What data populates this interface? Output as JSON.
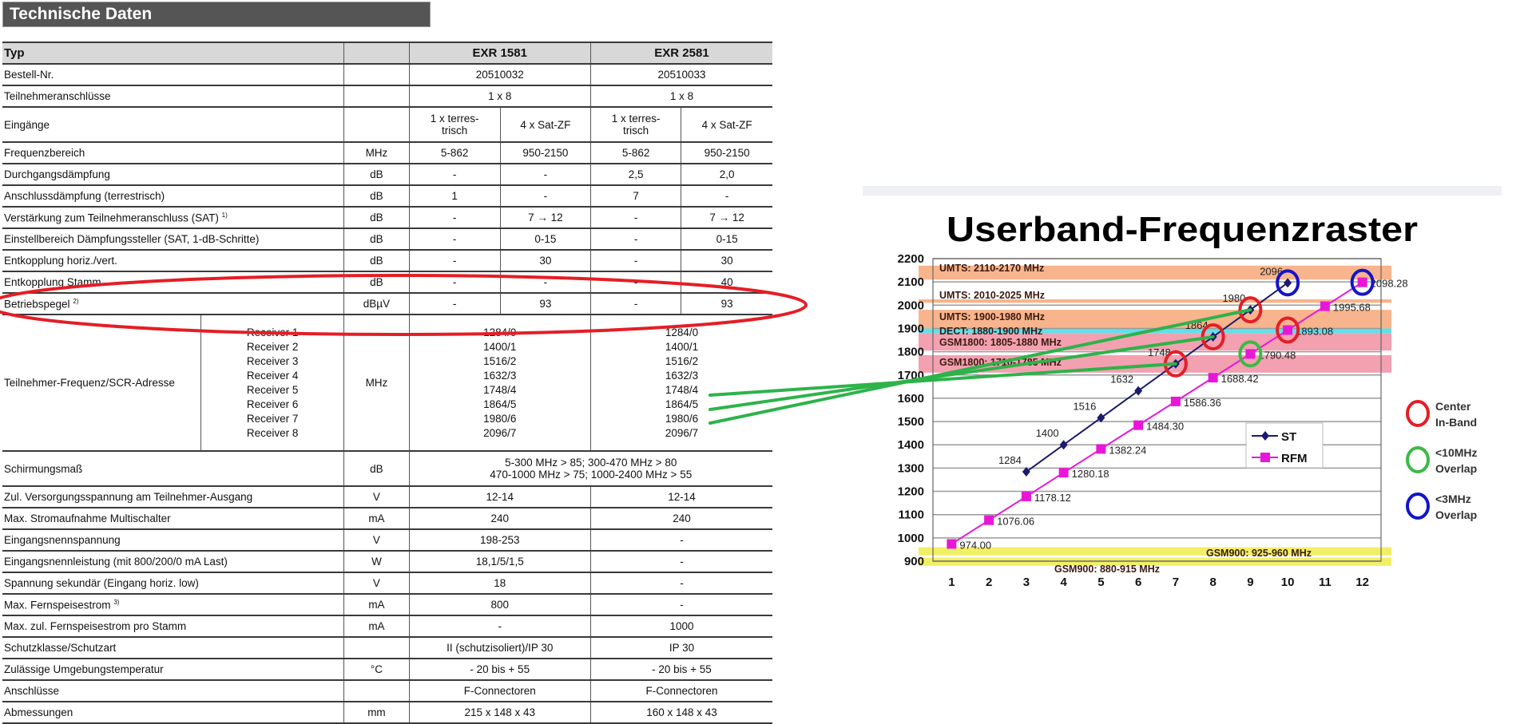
{
  "section_title": "Technische Daten",
  "table": {
    "header": {
      "label": "Typ",
      "unit": "",
      "products": [
        "EXR 1581",
        "EXR 2581"
      ]
    },
    "rows": [
      {
        "label": "Bestell-Nr.",
        "unit": "",
        "layout": "pair",
        "values": [
          "20510032",
          "20510033"
        ]
      },
      {
        "label": "Teilnehmeranschlüsse",
        "unit": "",
        "layout": "pair",
        "values": [
          "1 x 8",
          "1 x 8"
        ]
      },
      {
        "label": "Eingänge",
        "unit": "",
        "layout": "quad",
        "tall": true,
        "values": [
          "1 x terres-\ntrisch",
          "4 x Sat-ZF",
          "1 x terres-\ntrisch",
          "4 x Sat-ZF"
        ]
      },
      {
        "label": "Frequenzbereich",
        "unit": "MHz",
        "layout": "quad",
        "values": [
          "5-862",
          "950-2150",
          "5-862",
          "950-2150"
        ]
      },
      {
        "label": "Durchgangsdämpfung",
        "unit": "dB",
        "layout": "quad",
        "values": [
          "-",
          "-",
          "2,5",
          "2,0"
        ]
      },
      {
        "label": "Anschlussdämpfung (terrestrisch)",
        "unit": "dB",
        "layout": "quad",
        "values": [
          "1",
          "-",
          "7",
          "-"
        ]
      },
      {
        "label": "Verstärkung zum Teilnehmeranschluss (SAT)",
        "sup": "1)",
        "unit": "dB",
        "layout": "quad",
        "values": [
          "-",
          "7 → 12",
          "-",
          "7 → 12"
        ]
      },
      {
        "label": "Einstellbereich Dämpfungssteller (SAT, 1-dB-Schritte)",
        "unit": "dB",
        "layout": "quad",
        "values": [
          "-",
          "0-15",
          "-",
          "0-15"
        ]
      },
      {
        "label": "Entkopplung horiz./vert.",
        "unit": "dB",
        "layout": "quad",
        "values": [
          "-",
          "30",
          "-",
          "30"
        ]
      },
      {
        "label": "Entkopplung Stamm",
        "unit": "dB",
        "layout": "quad",
        "values": [
          "-",
          "-",
          "-",
          "40"
        ]
      },
      {
        "label": "Betriebspegel",
        "sup": "2)",
        "unit": "dBµV",
        "layout": "quad",
        "values": [
          "-",
          "93",
          "-",
          "93"
        ]
      },
      {
        "label": "Teilnehmer-Frequenz/SCR-Adresse",
        "unit": "MHz",
        "layout": "receivers",
        "receivers": [
          "Receiver 1",
          "Receiver 2",
          "Receiver 3",
          "Receiver 4",
          "Receiver 5",
          "Receiver 6",
          "Receiver 7",
          "Receiver 8"
        ],
        "values": [
          [
            "1284/0",
            "1400/1",
            "1516/2",
            "1632/3",
            "1748/4",
            "1864/5",
            "1980/6",
            "2096/7"
          ],
          [
            "1284/0",
            "1400/1",
            "1516/2",
            "1632/3",
            "1748/4",
            "1864/5",
            "1980/6",
            "2096/7"
          ]
        ]
      },
      {
        "label": "Schirmungsmaß",
        "unit": "dB",
        "layout": "merged",
        "tall": true,
        "values": [
          "5-300 MHz > 85; 300-470 MHz > 80\n470-1000 MHz > 75; 1000-2400 MHz > 55"
        ]
      },
      {
        "label": "Zul. Versorgungsspannung am Teilnehmer-Ausgang",
        "unit": "V",
        "layout": "pair",
        "values": [
          "12-14",
          "12-14"
        ]
      },
      {
        "label": "Max. Stromaufnahme Multischalter",
        "unit": "mA",
        "layout": "pair",
        "values": [
          "240",
          "240"
        ]
      },
      {
        "label": "Eingangsnennspannung",
        "unit": "V",
        "layout": "pair",
        "values": [
          "198-253",
          "-"
        ]
      },
      {
        "label": "Eingangsnennleistung (mit 800/200/0 mA Last)",
        "unit": "W",
        "layout": "pair",
        "values": [
          "18,1/5/1,5",
          "-"
        ]
      },
      {
        "label": "Spannung sekundär (Eingang horiz. low)",
        "unit": "V",
        "layout": "pair",
        "values": [
          "18",
          "-"
        ]
      },
      {
        "label": "Max. Fernspeisestrom",
        "sup": "3)",
        "unit": "mA",
        "layout": "pair",
        "values": [
          "800",
          "-"
        ]
      },
      {
        "label": "Max. zul. Fernspeisestrom pro Stamm",
        "unit": "mA",
        "layout": "pair",
        "values": [
          "-",
          "1000"
        ]
      },
      {
        "label": "Schutzklasse/Schutzart",
        "unit": "",
        "layout": "pair",
        "values": [
          "II (schutzisoliert)/IP 30",
          "IP 30"
        ]
      },
      {
        "label": "Zulässige Umgebungstemperatur",
        "unit": "°C",
        "layout": "pair",
        "values": [
          "- 20 bis + 55",
          "- 20 bis + 55"
        ]
      },
      {
        "label": "Anschlüsse",
        "unit": "",
        "layout": "pair",
        "values": [
          "F-Connectoren",
          "F-Connectoren"
        ]
      },
      {
        "label": "Abmessungen",
        "unit": "mm",
        "layout": "pair",
        "values": [
          "215 x 148 x 43",
          "160 x 148 x 43"
        ]
      }
    ]
  },
  "annotations": {
    "highlight_color": "#e41e26",
    "connector_color": "#2db34a"
  },
  "chart_data": {
    "type": "line",
    "title": "Userband-Frequenzraster",
    "x": [
      1,
      2,
      3,
      4,
      5,
      6,
      7,
      8,
      9,
      10,
      11,
      12
    ],
    "xlim": [
      0.5,
      12.5
    ],
    "ylim": [
      900,
      2200
    ],
    "yticks": [
      900,
      1000,
      1100,
      1200,
      1300,
      1400,
      1500,
      1600,
      1700,
      1800,
      1900,
      2000,
      2100,
      2200
    ],
    "grid": true,
    "series": [
      {
        "name": "ST",
        "color": "#1a1a6e",
        "marker": "diamond",
        "x": [
          3,
          4,
          5,
          6,
          7,
          8,
          9,
          10
        ],
        "values": [
          1284,
          1400,
          1516,
          1632,
          1748,
          1864,
          1980,
          2096
        ],
        "labels": [
          "1284",
          "1400",
          "1516",
          "1632",
          "1748",
          "1864",
          "1980",
          "2096"
        ]
      },
      {
        "name": "RFM",
        "color": "#e817d8",
        "marker": "square",
        "x": [
          1,
          2,
          3,
          4,
          5,
          6,
          7,
          8,
          9,
          10,
          11,
          12
        ],
        "values": [
          974.0,
          1076.06,
          1178.12,
          1280.18,
          1382.24,
          1484.3,
          1586.36,
          1688.42,
          1790.48,
          1893.08,
          1995.68,
          2098.28
        ],
        "labels": [
          "974.00",
          "1076.06",
          "1178.12",
          "1280.18",
          "1382.24",
          "1484.30",
          "1586.36",
          "1688.42",
          "1790.48",
          "1893.08",
          "1995.68",
          "2098.28"
        ]
      }
    ],
    "bands": [
      {
        "label": "UMTS: 2110-2170 MHz",
        "from": 2110,
        "to": 2170,
        "color": "#f8b48c"
      },
      {
        "label": "UMTS: 2010-2025 MHz",
        "from": 2010,
        "to": 2025,
        "color": "#f8b48c"
      },
      {
        "label": "UMTS: 1900-1980 MHz",
        "from": 1900,
        "to": 1980,
        "color": "#f8b48c"
      },
      {
        "label": "DECT: 1880-1900 MHz",
        "from": 1880,
        "to": 1900,
        "color": "#5fe0ea"
      },
      {
        "label": "GSM1800: 1805-1880 MHz",
        "from": 1805,
        "to": 1880,
        "color": "#f3a0b0"
      },
      {
        "label": "GSM1800: 1710-1785 MHz",
        "from": 1710,
        "to": 1785,
        "color": "#f3a0b0"
      },
      {
        "label": "GSM900: 925-960 MHz",
        "from": 925,
        "to": 960,
        "color": "#f1ef66"
      },
      {
        "label": "GSM900: 880-915 MHz",
        "from": 880,
        "to": 915,
        "color": "#f1ef66"
      }
    ],
    "legend": {
      "position": "center-right",
      "entries": [
        "ST",
        "RFM"
      ]
    },
    "marker_legend": [
      {
        "label": "Center\nIn-Band",
        "color": "#e41e26"
      },
      {
        "label": "<10MHz\nOverlap",
        "color": "#3cb944"
      },
      {
        "label": "<3MHz\nOverlap",
        "color": "#1414c8"
      }
    ],
    "circled_points": [
      {
        "series": "ST",
        "x": 7,
        "kind": "Center In-Band"
      },
      {
        "series": "ST",
        "x": 8,
        "kind": "Center In-Band"
      },
      {
        "series": "ST",
        "x": 9,
        "kind": "Center In-Band"
      },
      {
        "series": "RFM",
        "x": 10,
        "kind": "Center In-Band"
      },
      {
        "series": "RFM",
        "x": 9,
        "kind": "<10MHz Overlap"
      },
      {
        "series": "ST",
        "x": 10,
        "kind": "<3MHz Overlap"
      },
      {
        "series": "RFM",
        "x": 12,
        "kind": "<3MHz Overlap"
      }
    ]
  }
}
